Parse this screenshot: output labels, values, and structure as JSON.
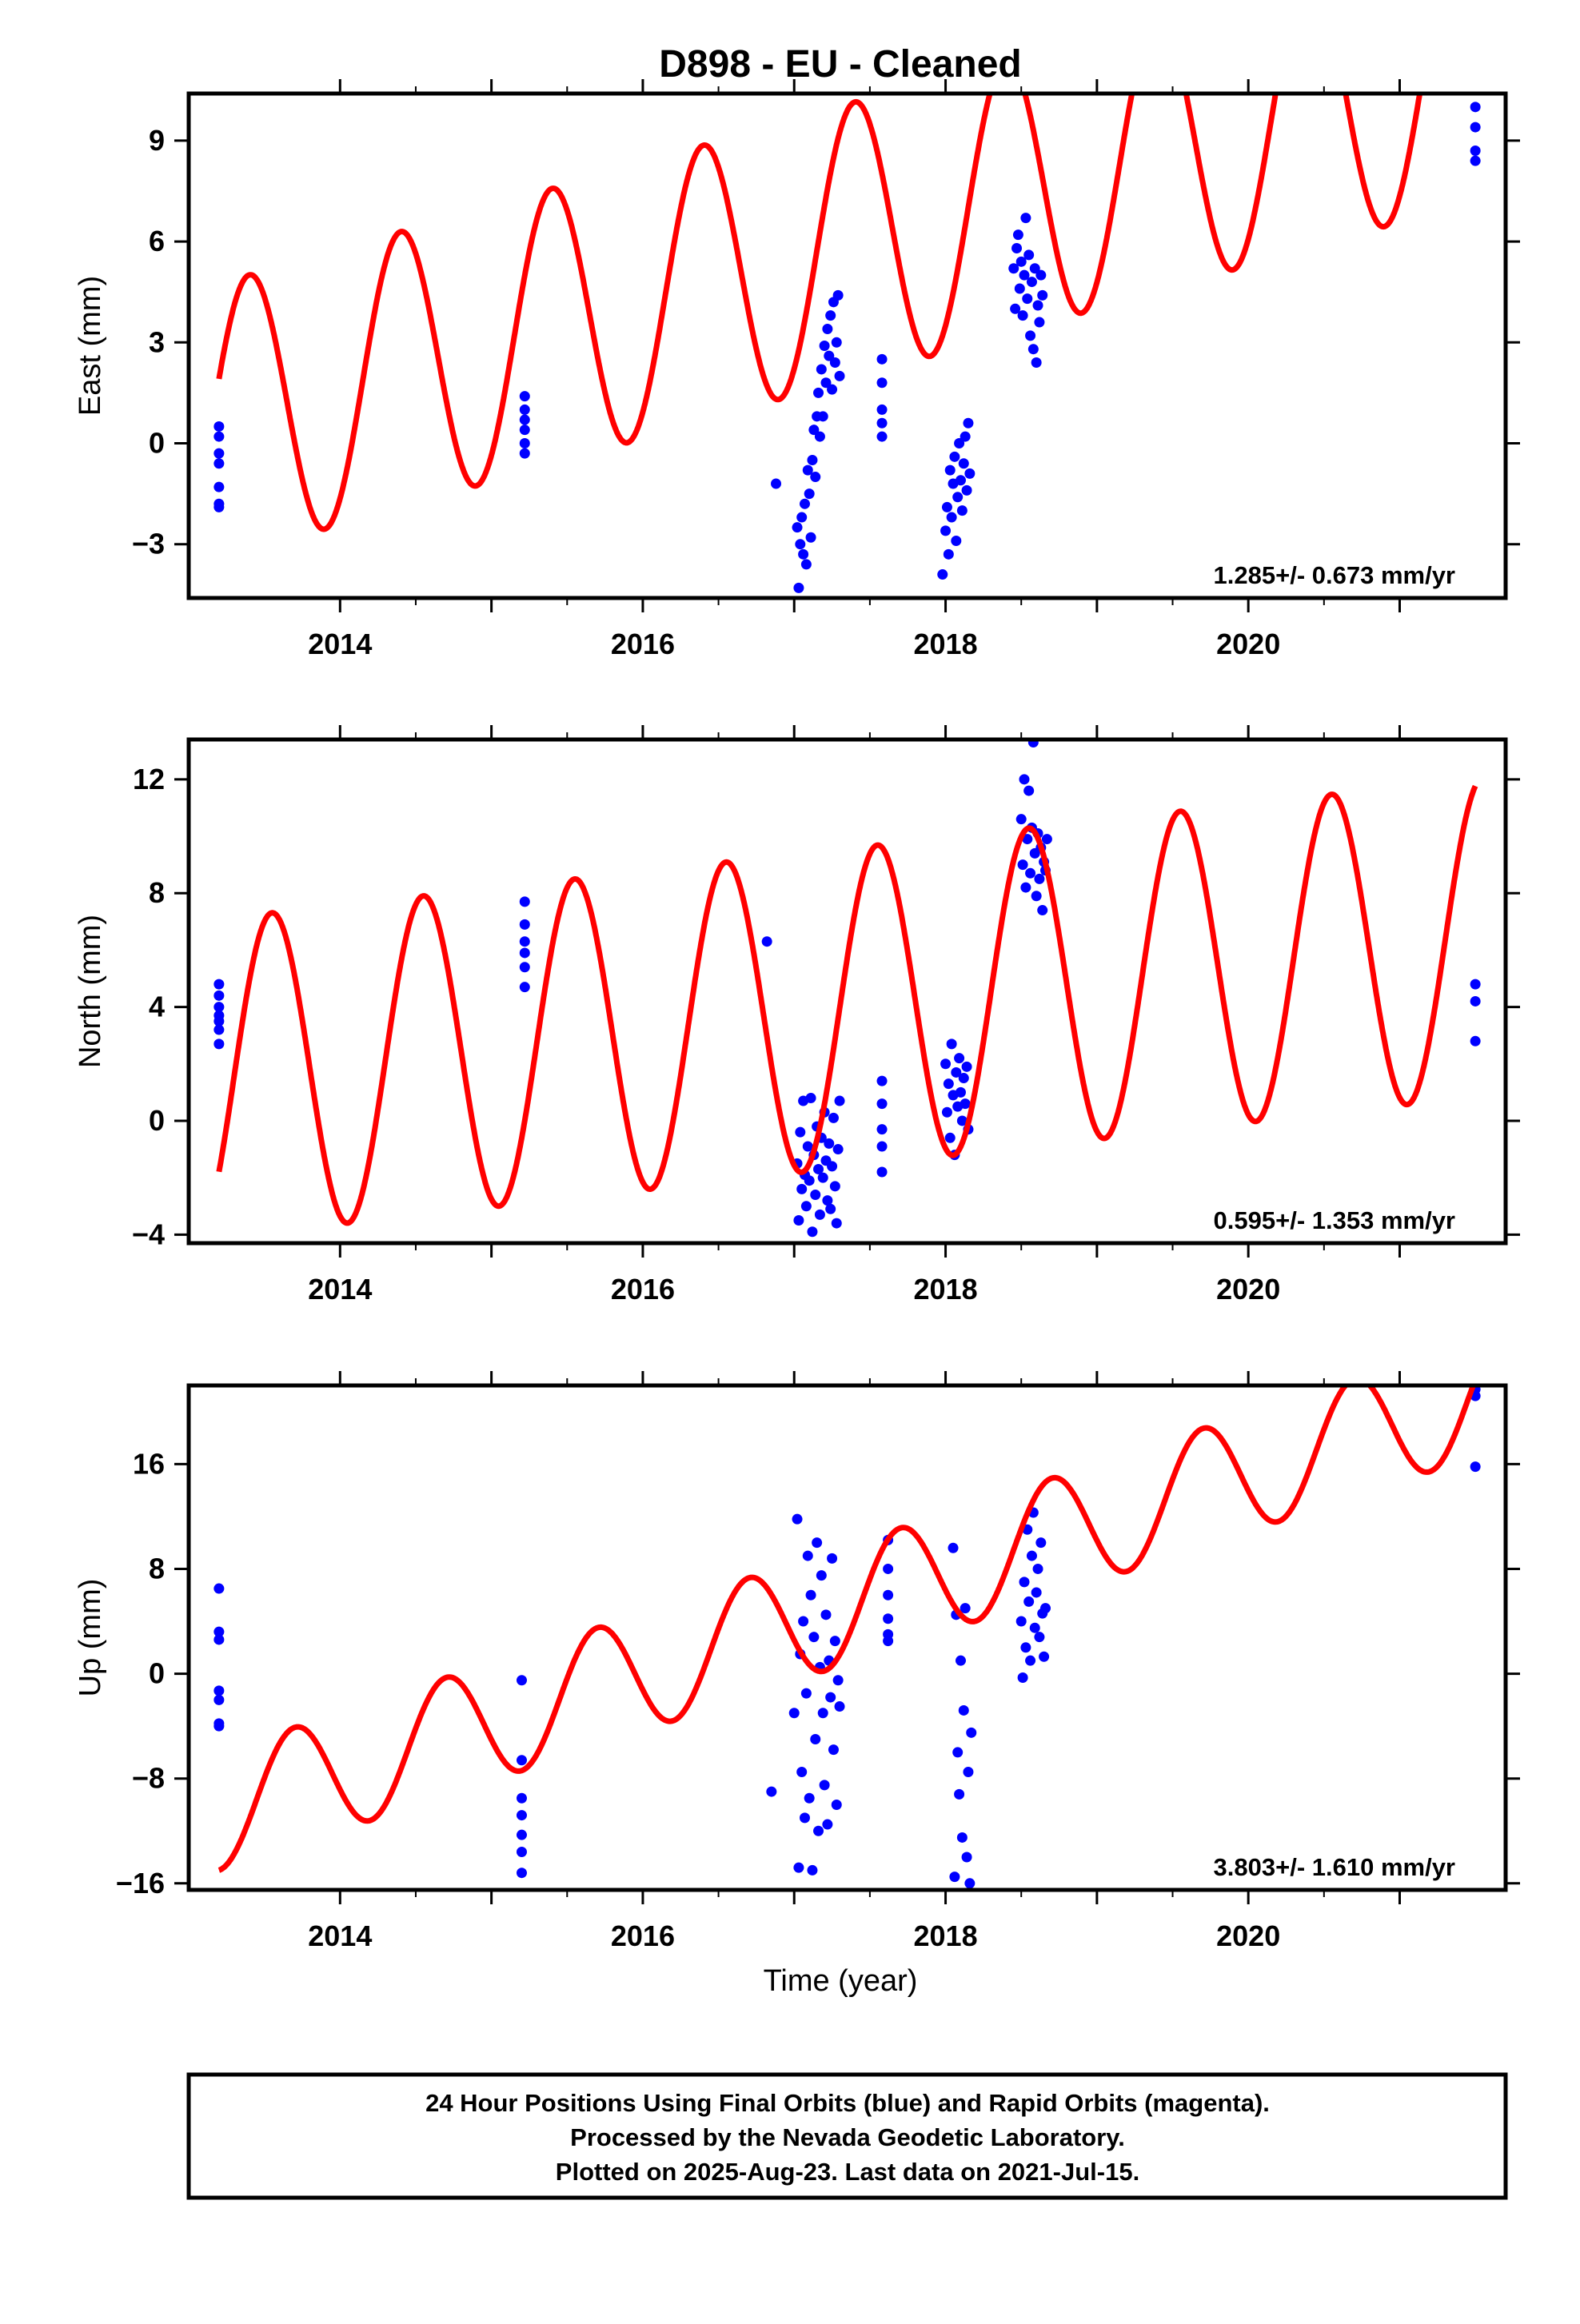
{
  "chart_data": {
    "type": "scatter",
    "title": "D898  - EU - Cleaned",
    "xlabel": "Time (year)",
    "xlim": [
      2013.0,
      2021.7
    ],
    "x_ticks": [
      2014,
      2016,
      2018,
      2020
    ],
    "x_tick_labels": [
      "2014",
      "2016",
      "2018",
      "2020"
    ],
    "colors": {
      "data": "#0000ff",
      "model": "#ff0000",
      "frame": "#000000"
    },
    "panels": [
      {
        "id": "east",
        "ylabel": "East (mm)",
        "ylim": [
          -4.6,
          10.4
        ],
        "y_ticks": [
          -3,
          0,
          3,
          6,
          9
        ],
        "y_tick_labels": [
          "−3",
          "0",
          "3",
          "6",
          "9"
        ],
        "rate_label": "1.285+/- 0.673 mm/yr",
        "model": {
          "offset": 0.65,
          "rate": 1.285,
          "amplitude": 4.1,
          "phase": 2013.15
        },
        "series": [
          {
            "x": [
              2013.2,
              2013.2,
              2013.2,
              2013.2,
              2013.2,
              2013.2,
              2013.2
            ],
            "y": [
              0.5,
              0.2,
              -0.3,
              -0.6,
              -1.3,
              -1.8,
              -1.9
            ]
          },
          {
            "x": [
              2015.22,
              2015.22,
              2015.22,
              2015.22,
              2015.22,
              2015.22
            ],
            "y": [
              1.4,
              1.0,
              0.7,
              0.4,
              0.0,
              -0.3
            ]
          },
          {
            "x": [
              2016.88,
              2017.02,
              2017.03,
              2017.04,
              2017.05,
              2017.06,
              2017.07,
              2017.08,
              2017.09,
              2017.1,
              2017.11,
              2017.12,
              2017.13,
              2017.14,
              2017.15,
              2017.16,
              2017.17,
              2017.18,
              2017.19,
              2017.2,
              2017.21,
              2017.22,
              2017.23,
              2017.24,
              2017.25,
              2017.26,
              2017.27,
              2017.28,
              2017.29,
              2017.3
            ],
            "y": [
              -1.2,
              -2.5,
              -4.3,
              -3.0,
              -2.2,
              -3.3,
              -1.8,
              -3.6,
              -0.8,
              -1.5,
              -2.8,
              -0.5,
              0.4,
              -1.0,
              0.8,
              1.5,
              0.2,
              2.2,
              0.8,
              2.9,
              1.8,
              3.4,
              2.6,
              3.8,
              1.6,
              4.2,
              2.4,
              3.0,
              4.4,
              2.0
            ]
          },
          {
            "x": [
              2017.58,
              2017.58,
              2017.58,
              2017.58,
              2017.58
            ],
            "y": [
              2.5,
              1.8,
              1.0,
              0.6,
              0.2
            ]
          },
          {
            "x": [
              2017.98,
              2018.0,
              2018.01,
              2018.02,
              2018.03,
              2018.04,
              2018.05,
              2018.06,
              2018.07,
              2018.08,
              2018.09,
              2018.1,
              2018.11,
              2018.12,
              2018.13,
              2018.14,
              2018.15,
              2018.16
            ],
            "y": [
              -3.9,
              -2.6,
              -1.9,
              -3.3,
              -0.8,
              -2.2,
              -1.2,
              -0.4,
              -2.9,
              -1.6,
              0.0,
              -1.1,
              -2.0,
              -0.6,
              0.2,
              -1.4,
              0.6,
              -0.9
            ]
          },
          {
            "x": [
              2018.45,
              2018.46,
              2018.47,
              2018.48,
              2018.49,
              2018.5,
              2018.51,
              2018.52,
              2018.53,
              2018.54,
              2018.55,
              2018.56,
              2018.57,
              2018.58,
              2018.59,
              2018.6,
              2018.61,
              2018.62,
              2018.63,
              2018.64
            ],
            "y": [
              5.2,
              4.0,
              5.8,
              6.2,
              4.6,
              5.4,
              3.8,
              5.0,
              6.7,
              4.3,
              5.6,
              3.2,
              4.8,
              2.8,
              5.2,
              2.4,
              4.1,
              3.6,
              5.0,
              4.4
            ]
          },
          {
            "x": [
              2021.5,
              2021.5,
              2021.5,
              2021.5
            ],
            "y": [
              10.0,
              9.4,
              8.7,
              8.4
            ]
          }
        ]
      },
      {
        "id": "north",
        "ylabel": "North (mm)",
        "ylim": [
          -4.3,
          13.4
        ],
        "y_ticks": [
          -4,
          0,
          4,
          8,
          12
        ],
        "y_tick_labels": [
          "−4",
          "0",
          "4",
          "8",
          "12"
        ],
        "rate_label": "0.595+/- 1.353 mm/yr",
        "model": {
          "offset": 1.5,
          "rate": 0.595,
          "amplitude": 5.6,
          "phase": 2013.3
        },
        "series": [
          {
            "x": [
              2013.2,
              2013.2,
              2013.2,
              2013.2,
              2013.2,
              2013.2,
              2013.2
            ],
            "y": [
              4.8,
              4.4,
              4.0,
              3.7,
              3.5,
              3.2,
              2.7
            ]
          },
          {
            "x": [
              2015.22,
              2015.22,
              2015.22,
              2015.22,
              2015.22,
              2015.22
            ],
            "y": [
              7.7,
              6.9,
              6.3,
              5.9,
              5.4,
              4.7
            ]
          },
          {
            "x": [
              2016.82
            ],
            "y": [
              6.3
            ]
          },
          {
            "x": [
              2017.02,
              2017.03,
              2017.04,
              2017.05,
              2017.06,
              2017.07,
              2017.08,
              2017.09,
              2017.1,
              2017.11,
              2017.12,
              2017.13,
              2017.14,
              2017.15,
              2017.16,
              2017.17,
              2017.18,
              2017.19,
              2017.2,
              2017.21,
              2017.22,
              2017.23,
              2017.24,
              2017.25,
              2017.26,
              2017.27,
              2017.28,
              2017.29,
              2017.3
            ],
            "y": [
              -1.5,
              -3.5,
              -0.4,
              -2.4,
              0.7,
              -1.9,
              -3.0,
              -0.9,
              -2.1,
              0.8,
              -3.9,
              -1.2,
              -2.6,
              -0.2,
              -1.7,
              -3.3,
              -0.6,
              -2.0,
              0.3,
              -1.4,
              -2.8,
              -0.8,
              -3.1,
              -1.6,
              0.1,
              -2.3,
              -3.6,
              -1.0,
              0.7
            ]
          },
          {
            "x": [
              2017.58,
              2017.58,
              2017.58,
              2017.58,
              2017.58
            ],
            "y": [
              1.4,
              0.6,
              -0.3,
              -0.9,
              -1.8
            ]
          },
          {
            "x": [
              2018.0,
              2018.01,
              2018.02,
              2018.03,
              2018.04,
              2018.05,
              2018.06,
              2018.07,
              2018.08,
              2018.09,
              2018.1,
              2018.11,
              2018.12,
              2018.13,
              2018.14,
              2018.15
            ],
            "y": [
              2.0,
              0.3,
              1.3,
              -0.6,
              2.7,
              0.9,
              -1.2,
              1.7,
              0.5,
              2.2,
              1.0,
              0.0,
              1.5,
              0.6,
              1.9,
              -0.3
            ]
          },
          {
            "x": [
              2018.5,
              2018.51,
              2018.52,
              2018.53,
              2018.54,
              2018.55,
              2018.56,
              2018.57,
              2018.58,
              2018.59,
              2018.6,
              2018.61,
              2018.62,
              2018.63,
              2018.64,
              2018.65,
              2018.66,
              2018.67
            ],
            "y": [
              10.6,
              9.0,
              12.0,
              8.2,
              9.9,
              11.6,
              8.7,
              10.3,
              13.3,
              9.4,
              7.9,
              10.1,
              8.5,
              9.6,
              7.4,
              9.1,
              8.8,
              9.9
            ]
          },
          {
            "x": [
              2021.5,
              2021.5,
              2021.5
            ],
            "y": [
              4.8,
              4.2,
              2.8
            ]
          }
        ]
      },
      {
        "id": "up",
        "ylabel": "Up (mm)",
        "ylim": [
          -16.5,
          22.0
        ],
        "y_ticks": [
          -16,
          -8,
          0,
          8,
          16
        ],
        "y_tick_labels": [
          "−16",
          "−8",
          "0",
          "8",
          "16"
        ],
        "rate_label": "3.803+/- 1.610 mm/yr",
        "model": {
          "offset": -10.5,
          "rate": 3.803,
          "amplitude": 4.5,
          "phase": 2013.45
        },
        "series": [
          {
            "x": [
              2013.2,
              2013.2,
              2013.2,
              2013.2,
              2013.2,
              2013.2,
              2013.2
            ],
            "y": [
              6.5,
              3.2,
              2.6,
              -1.3,
              -2.0,
              -3.8,
              -4.0
            ]
          },
          {
            "x": [
              2015.2,
              2015.2,
              2015.2,
              2015.2,
              2015.2,
              2015.2,
              2015.2
            ],
            "y": [
              -0.5,
              -6.6,
              -9.5,
              -10.8,
              -12.3,
              -13.6,
              -15.2
            ]
          },
          {
            "x": [
              2016.85,
              2017.0,
              2017.02,
              2017.03,
              2017.04,
              2017.05,
              2017.06,
              2017.07,
              2017.08,
              2017.09,
              2017.1,
              2017.11,
              2017.12,
              2017.13,
              2017.14,
              2017.15,
              2017.16,
              2017.17,
              2017.18,
              2017.19,
              2017.2,
              2017.21,
              2017.22,
              2017.23,
              2017.24,
              2017.25,
              2017.26,
              2017.27,
              2017.28,
              2017.29,
              2017.3
            ],
            "y": [
              -9.0,
              -3.0,
              11.8,
              -14.8,
              1.5,
              -7.5,
              4.0,
              -11.0,
              -1.5,
              9.0,
              -9.5,
              6.0,
              -15.0,
              2.8,
              -5.0,
              10.0,
              -12.0,
              0.5,
              7.5,
              -3.0,
              -8.5,
              4.5,
              -11.5,
              1.0,
              -1.8,
              8.8,
              -5.8,
              2.5,
              -10.0,
              -0.5,
              -2.5
            ]
          },
          {
            "x": [
              2017.62,
              2017.62,
              2017.62,
              2017.62,
              2017.62,
              2017.62
            ],
            "y": [
              10.2,
              8.0,
              6.0,
              4.2,
              3.0,
              2.5
            ]
          },
          {
            "x": [
              2018.05,
              2018.06,
              2018.07,
              2018.08,
              2018.09,
              2018.1,
              2018.11,
              2018.12,
              2018.13,
              2018.14,
              2018.15,
              2018.16,
              2018.17
            ],
            "y": [
              9.6,
              -15.5,
              4.5,
              -6.0,
              -9.2,
              1.0,
              -12.5,
              -2.8,
              5.0,
              -14.0,
              -7.5,
              -16.0,
              -4.5
            ]
          },
          {
            "x": [
              2018.5,
              2018.51,
              2018.52,
              2018.53,
              2018.54,
              2018.55,
              2018.56,
              2018.57,
              2018.58,
              2018.59,
              2018.6,
              2018.61,
              2018.62,
              2018.63,
              2018.64,
              2018.65,
              2018.66
            ],
            "y": [
              4.0,
              -0.3,
              7.0,
              2.0,
              11.0,
              5.5,
              1.0,
              9.0,
              12.3,
              3.5,
              6.2,
              8.0,
              2.8,
              10.0,
              4.6,
              1.3,
              5.0
            ]
          },
          {
            "x": [
              2021.5,
              2021.5,
              2021.5
            ],
            "y": [
              21.7,
              21.2,
              15.8
            ]
          }
        ]
      }
    ]
  },
  "footer": {
    "line1": "24 Hour Positions Using Final Orbits (blue) and Rapid Orbits (magenta).",
    "line2": "Processed by the Nevada Geodetic Laboratory.",
    "line3": "Plotted on 2025-Aug-23. Last data on 2021-Jul-15."
  }
}
